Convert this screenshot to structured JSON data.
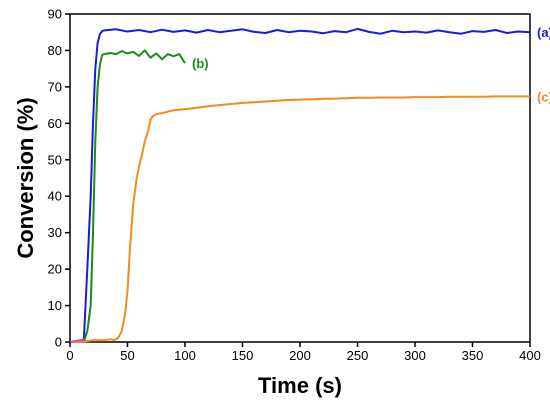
{
  "chart_data": {
    "type": "line",
    "xlabel": "Time (s)",
    "ylabel": "Conversion (%)",
    "xlim": [
      0,
      400
    ],
    "ylim": [
      0,
      90
    ],
    "x_ticks": [
      0,
      50,
      100,
      150,
      200,
      250,
      300,
      350,
      400
    ],
    "y_ticks": [
      0,
      10,
      20,
      30,
      40,
      50,
      60,
      70,
      80,
      90
    ],
    "grid": false,
    "legend": "none",
    "series": [
      {
        "name": "(a)",
        "color": "#1c1cd6",
        "x": [
          0,
          5,
          10,
          12,
          15,
          18,
          20,
          22,
          24,
          26,
          28,
          30,
          40,
          50,
          60,
          70,
          80,
          90,
          100,
          110,
          120,
          130,
          140,
          150,
          160,
          170,
          180,
          190,
          200,
          210,
          220,
          230,
          240,
          250,
          260,
          270,
          280,
          290,
          300,
          310,
          320,
          330,
          340,
          350,
          360,
          370,
          380,
          390,
          400
        ],
        "y": [
          0,
          0,
          0,
          0.5,
          20,
          40,
          60,
          75,
          82,
          84.5,
          85.3,
          85.5,
          85.8,
          85.2,
          85.6,
          85.0,
          85.7,
          85.1,
          85.5,
          84.9,
          85.6,
          85.0,
          85.4,
          85.8,
          85.1,
          84.8,
          85.6,
          85.0,
          85.4,
          85.2,
          84.7,
          85.3,
          85.0,
          85.9,
          85.1,
          84.6,
          85.4,
          85.0,
          85.2,
          84.9,
          85.5,
          85.0,
          84.6,
          85.3,
          85.1,
          85.6,
          84.8,
          85.2,
          85.0
        ]
      },
      {
        "name": "(b)",
        "color": "#1a8c1a",
        "x": [
          0,
          5,
          10,
          12,
          15,
          18,
          20,
          22,
          24,
          26,
          28,
          30,
          35,
          40,
          45,
          50,
          55,
          60,
          65,
          70,
          75,
          80,
          85,
          90,
          95,
          100
        ],
        "y": [
          0,
          0,
          0,
          0,
          3,
          10,
          30,
          55,
          70,
          76,
          78.8,
          79.0,
          79.3,
          79.0,
          79.8,
          79.2,
          79.6,
          78.5,
          80.0,
          78.0,
          79.2,
          77.6,
          79.0,
          78.4,
          79.0,
          76.5
        ]
      },
      {
        "name": "(c)",
        "color": "#f28c1b",
        "x": [
          0,
          10,
          20,
          30,
          35,
          38,
          40,
          42,
          45,
          48,
          50,
          52,
          55,
          58,
          60,
          63,
          65,
          68,
          70,
          72,
          75,
          80,
          85,
          90,
          100,
          110,
          120,
          130,
          140,
          150,
          160,
          170,
          180,
          190,
          200,
          210,
          220,
          230,
          240,
          250,
          260,
          270,
          280,
          290,
          300,
          310,
          320,
          330,
          340,
          350,
          360,
          370,
          380,
          390,
          400
        ],
        "y": [
          0,
          0,
          0.5,
          0.5,
          0.8,
          0.5,
          0.8,
          1.2,
          3,
          8,
          14,
          25,
          38,
          45,
          48,
          52,
          55,
          58,
          61,
          62,
          62.5,
          62.8,
          63.2,
          63.6,
          63.9,
          64.3,
          64.7,
          65.0,
          65.3,
          65.6,
          65.8,
          66.0,
          66.2,
          66.4,
          66.5,
          66.6,
          66.7,
          66.8,
          66.9,
          67.0,
          67.0,
          67.1,
          67.1,
          67.1,
          67.2,
          67.2,
          67.2,
          67.3,
          67.3,
          67.3,
          67.3,
          67.4,
          67.4,
          67.4,
          67.4
        ]
      },
      {
        "name": "",
        "color": "#d24ad2",
        "x": [
          0,
          5,
          10,
          12
        ],
        "y": [
          0,
          0.3,
          0.6,
          0.8
        ]
      }
    ]
  }
}
